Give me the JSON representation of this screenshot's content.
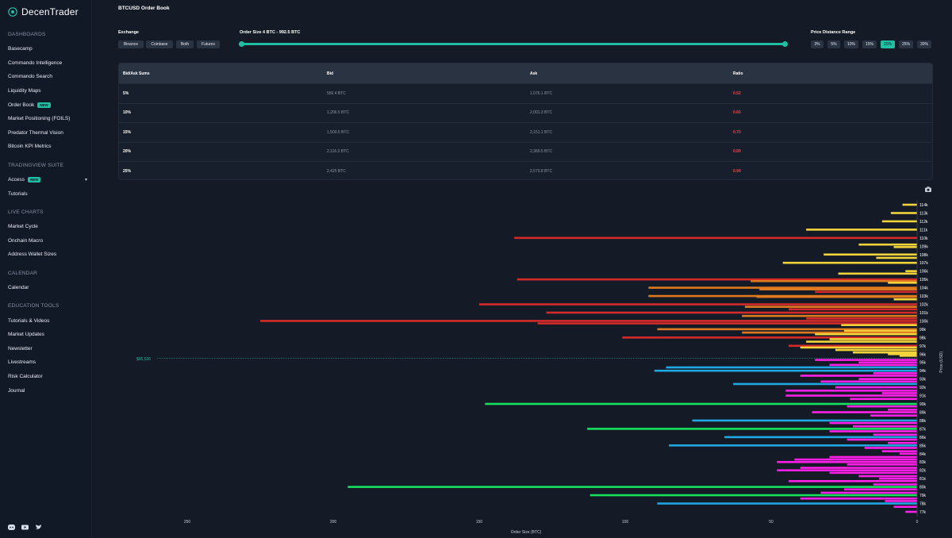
{
  "app": {
    "name": "DecenTrader"
  },
  "sidebar": {
    "sections": [
      {
        "title": "DASHBOARDS",
        "items": [
          {
            "label": "Basecamp"
          },
          {
            "label": "Commando Intelligence"
          },
          {
            "label": "Commando Search"
          },
          {
            "label": "Liquidity Maps"
          },
          {
            "label": "Order Book",
            "badge": "NEW"
          },
          {
            "label": "Market Positioning (FOILS)"
          },
          {
            "label": "Predator Thermal Vision"
          },
          {
            "label": "Bitcoin KPI Metrics"
          }
        ]
      },
      {
        "title": "TRADINGVIEW SUITE",
        "items": [
          {
            "label": "Access",
            "badge": "NEW",
            "chevron": true
          },
          {
            "label": "Tutorials"
          }
        ]
      },
      {
        "title": "LIVE CHARTS",
        "items": [
          {
            "label": "Market Cycle"
          },
          {
            "label": "Onchain Macro"
          },
          {
            "label": "Address Wallet Sizes"
          }
        ]
      },
      {
        "title": "CALENDAR",
        "items": [
          {
            "label": "Calendar"
          }
        ]
      },
      {
        "title": "EDUCATION TOOLS",
        "items": [
          {
            "label": "Tutorials & Videos"
          },
          {
            "label": "Market Updates"
          },
          {
            "label": "Newsletter"
          },
          {
            "label": "Livestreams"
          },
          {
            "label": "Risk Calculator"
          },
          {
            "label": "Journal"
          }
        ]
      }
    ],
    "social_icons": [
      "discord-icon",
      "youtube-icon",
      "twitter-icon"
    ]
  },
  "page": {
    "title": "BTCUSD Order Book"
  },
  "controls": {
    "exchange_label": "Exchange",
    "exchanges": [
      "Binance",
      "Coinbase",
      "Both",
      "Futures"
    ],
    "exchange_selected": "Binance",
    "order_size_label": "Order Size 4 BTC - 992.5 BTC",
    "order_size_min": 4,
    "order_size_max": 992.5,
    "order_size_low_fraction": 0.0,
    "order_size_high_fraction": 1.0,
    "price_range_label": "Price Distance Range",
    "price_ranges": [
      "3%",
      "5%",
      "10%",
      "15%",
      "20%",
      "25%",
      "30%"
    ],
    "price_range_selected": "20%"
  },
  "table": {
    "headers": [
      "Bid/Ask Sums",
      "Bid",
      "Ask",
      "Ratio"
    ],
    "rows": [
      [
        "5%",
        "556.4 BTC",
        "1,076.1 BTC",
        "0.52"
      ],
      [
        "10%",
        "1,206.5 BTC",
        "2,001.3 BTC",
        "0.60"
      ],
      [
        "15%",
        "1,500.5 BTC",
        "2,151.1 BTC",
        "0.70"
      ],
      [
        "20%",
        "2,116.3 BTC",
        "2,369.5 BTC",
        "0.89"
      ],
      [
        "25%",
        "2,425 BTC",
        "2,573.8 BTC",
        "0.94"
      ]
    ]
  },
  "colors": {
    "accent": "#1fbfa3",
    "ask_strong": "#d42a2a",
    "ask_mid": "#e07a1f",
    "ask_weak": "#f2d33a",
    "bid_strong": "#18e05f",
    "bid_mid": "#1ea7e0",
    "bid_weak": "#ff1fe8"
  },
  "chart_data": {
    "type": "bar",
    "orientation": "horizontal",
    "xlabel": "Order Size (BTC)",
    "ylabel": "Price (USD)",
    "xlim": [
      0,
      250
    ],
    "xticks": [
      0,
      50,
      100,
      150,
      200,
      250
    ],
    "xtick_labels": [
      "0",
      "50",
      "100",
      "150",
      "200",
      "250"
    ],
    "price_ticks": [
      "114k",
      "113k",
      "112k",
      "111k",
      "110k",
      "109k",
      "108k",
      "107k",
      "106k",
      "105k",
      "104k",
      "103k",
      "102k",
      "101k",
      "100k",
      "99k",
      "98k",
      "97k",
      "96k",
      "95k",
      "94k",
      "93k",
      "92k",
      "91k",
      "90k",
      "89k",
      "88k",
      "87k",
      "86k",
      "85k",
      "84k",
      "83k",
      "82k",
      "81k",
      "80k",
      "79k",
      "78k",
      "77k"
    ],
    "current_price_label": "$95,526",
    "current_price": 95526,
    "series": [
      {
        "name": "asks",
        "bars": [
          {
            "p": 114.0,
            "v": 5,
            "c": "weak"
          },
          {
            "p": 113.0,
            "v": 9,
            "c": "weak"
          },
          {
            "p": 112.0,
            "v": 12,
            "c": "weak"
          },
          {
            "p": 111.0,
            "v": 38,
            "c": "weak"
          },
          {
            "p": 110.0,
            "v": 138,
            "c": "strong"
          },
          {
            "p": 109.2,
            "v": 20,
            "c": "weak"
          },
          {
            "p": 108.9,
            "v": 8,
            "c": "weak"
          },
          {
            "p": 108.0,
            "v": 32,
            "c": "weak"
          },
          {
            "p": 107.6,
            "v": 14,
            "c": "weak"
          },
          {
            "p": 107.0,
            "v": 46,
            "c": "weak"
          },
          {
            "p": 106.0,
            "v": 4,
            "c": "weak"
          },
          {
            "p": 105.7,
            "v": 27,
            "c": "weak"
          },
          {
            "p": 105.0,
            "v": 137,
            "c": "strong"
          },
          {
            "p": 104.8,
            "v": 57,
            "c": "mid"
          },
          {
            "p": 104.6,
            "v": 10,
            "c": "weak"
          },
          {
            "p": 104.0,
            "v": 92,
            "c": "mid"
          },
          {
            "p": 103.8,
            "v": 54,
            "c": "mid"
          },
          {
            "p": 103.5,
            "v": 35,
            "c": "strong"
          },
          {
            "p": 103.0,
            "v": 92,
            "c": "mid"
          },
          {
            "p": 102.9,
            "v": 55,
            "c": "mid"
          },
          {
            "p": 102.6,
            "v": 8,
            "c": "weak"
          },
          {
            "p": 102.0,
            "v": 150,
            "c": "strong"
          },
          {
            "p": 101.7,
            "v": 59,
            "c": "mid"
          },
          {
            "p": 101.4,
            "v": 44,
            "c": "strong"
          },
          {
            "p": 101.0,
            "v": 127,
            "c": "strong"
          },
          {
            "p": 100.6,
            "v": 60,
            "c": "mid"
          },
          {
            "p": 100.3,
            "v": 38,
            "c": "strong"
          },
          {
            "p": 100.0,
            "v": 225,
            "c": "strong"
          },
          {
            "p": 99.7,
            "v": 130,
            "c": "strong"
          },
          {
            "p": 99.5,
            "v": 26,
            "c": "weak"
          },
          {
            "p": 99.0,
            "v": 89,
            "c": "mid"
          },
          {
            "p": 98.8,
            "v": 25,
            "c": "weak"
          },
          {
            "p": 98.6,
            "v": 60,
            "c": "mid"
          },
          {
            "p": 98.4,
            "v": 35,
            "c": "weak"
          },
          {
            "p": 98.0,
            "v": 101,
            "c": "strong"
          },
          {
            "p": 97.8,
            "v": 30,
            "c": "weak"
          },
          {
            "p": 97.5,
            "v": 38,
            "c": "weak"
          },
          {
            "p": 97.0,
            "v": 44,
            "c": "strong"
          },
          {
            "p": 96.8,
            "v": 40,
            "c": "weak"
          },
          {
            "p": 96.5,
            "v": 28,
            "c": "weak"
          },
          {
            "p": 96.2,
            "v": 22,
            "c": "weak"
          },
          {
            "p": 96.0,
            "v": 10,
            "c": "weak"
          },
          {
            "p": 95.8,
            "v": 6,
            "c": "weak"
          }
        ]
      },
      {
        "name": "bids",
        "bars": [
          {
            "p": 95.3,
            "v": 35,
            "c": "weak"
          },
          {
            "p": 95.0,
            "v": 20,
            "c": "weak"
          },
          {
            "p": 94.7,
            "v": 30,
            "c": "weak"
          },
          {
            "p": 94.4,
            "v": 86,
            "c": "mid"
          },
          {
            "p": 94.0,
            "v": 90,
            "c": "mid"
          },
          {
            "p": 93.7,
            "v": 15,
            "c": "weak"
          },
          {
            "p": 93.4,
            "v": 40,
            "c": "weak"
          },
          {
            "p": 93.0,
            "v": 20,
            "c": "weak"
          },
          {
            "p": 92.7,
            "v": 33,
            "c": "weak"
          },
          {
            "p": 92.4,
            "v": 63,
            "c": "mid"
          },
          {
            "p": 92.0,
            "v": 28,
            "c": "weak"
          },
          {
            "p": 91.6,
            "v": 45,
            "c": "weak"
          },
          {
            "p": 91.3,
            "v": 12,
            "c": "weak"
          },
          {
            "p": 91.0,
            "v": 45,
            "c": "weak"
          },
          {
            "p": 90.6,
            "v": 23,
            "c": "weak"
          },
          {
            "p": 90.0,
            "v": 148,
            "c": "strong"
          },
          {
            "p": 89.7,
            "v": 24,
            "c": "weak"
          },
          {
            "p": 89.3,
            "v": 10,
            "c": "weak"
          },
          {
            "p": 89.0,
            "v": 36,
            "c": "weak"
          },
          {
            "p": 88.6,
            "v": 16,
            "c": "weak"
          },
          {
            "p": 88.0,
            "v": 77,
            "c": "mid"
          },
          {
            "p": 87.7,
            "v": 30,
            "c": "weak"
          },
          {
            "p": 87.3,
            "v": 22,
            "c": "weak"
          },
          {
            "p": 87.0,
            "v": 113,
            "c": "strong"
          },
          {
            "p": 86.7,
            "v": 30,
            "c": "weak"
          },
          {
            "p": 86.3,
            "v": 15,
            "c": "weak"
          },
          {
            "p": 86.0,
            "v": 66,
            "c": "mid"
          },
          {
            "p": 85.7,
            "v": 24,
            "c": "weak"
          },
          {
            "p": 85.3,
            "v": 10,
            "c": "weak"
          },
          {
            "p": 85.0,
            "v": 85,
            "c": "mid"
          },
          {
            "p": 84.7,
            "v": 18,
            "c": "weak"
          },
          {
            "p": 84.3,
            "v": 12,
            "c": "weak"
          },
          {
            "p": 84.0,
            "v": 6,
            "c": "weak"
          },
          {
            "p": 83.6,
            "v": 30,
            "c": "weak"
          },
          {
            "p": 83.3,
            "v": 42,
            "c": "weak"
          },
          {
            "p": 83.0,
            "v": 48,
            "c": "weak"
          },
          {
            "p": 82.7,
            "v": 24,
            "c": "weak"
          },
          {
            "p": 82.3,
            "v": 40,
            "c": "weak"
          },
          {
            "p": 82.0,
            "v": 48,
            "c": "weak"
          },
          {
            "p": 81.7,
            "v": 30,
            "c": "weak"
          },
          {
            "p": 81.3,
            "v": 20,
            "c": "weak"
          },
          {
            "p": 81.0,
            "v": 13,
            "c": "weak"
          },
          {
            "p": 80.7,
            "v": 44,
            "c": "weak"
          },
          {
            "p": 80.3,
            "v": 15,
            "c": "weak"
          },
          {
            "p": 80.0,
            "v": 195,
            "c": "strong"
          },
          {
            "p": 79.7,
            "v": 25,
            "c": "weak"
          },
          {
            "p": 79.3,
            "v": 33,
            "c": "weak"
          },
          {
            "p": 79.0,
            "v": 112,
            "c": "strong"
          },
          {
            "p": 78.6,
            "v": 40,
            "c": "weak"
          },
          {
            "p": 78.3,
            "v": 11,
            "c": "weak"
          },
          {
            "p": 78.0,
            "v": 89,
            "c": "mid"
          },
          {
            "p": 77.6,
            "v": 8,
            "c": "weak"
          },
          {
            "p": 77.0,
            "v": 4,
            "c": "weak"
          }
        ]
      }
    ]
  }
}
